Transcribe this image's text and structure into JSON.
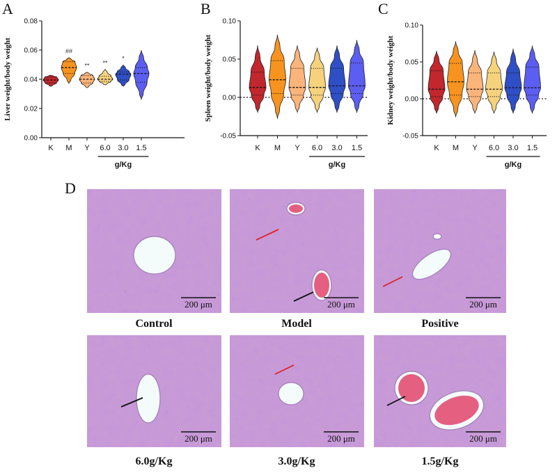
{
  "panels": {
    "A": {
      "letter": "A"
    },
    "B": {
      "letter": "B"
    },
    "C": {
      "letter": "C"
    },
    "D": {
      "letter": "D"
    }
  },
  "colors": [
    "#c1272d",
    "#f7931e",
    "#fbb47a",
    "#f6d27d",
    "#2f4fc6",
    "#5b5ef0"
  ],
  "chart_data": [
    {
      "type": "violin",
      "id": "liver",
      "title": "",
      "ylabel": "Liver weight/body weight",
      "ylim": [
        0.0,
        0.08
      ],
      "yticks": [
        0.0,
        0.02,
        0.04,
        0.06,
        0.08
      ],
      "ytick_labels": [
        "0.00",
        "0.02",
        "0.04",
        "0.06",
        "0.08"
      ],
      "categories": [
        "K",
        "M",
        "Y",
        "6.0",
        "3.0",
        "1.5"
      ],
      "group_label": "g/Kg",
      "group_categories": [
        "6.0",
        "3.0",
        "1.5"
      ],
      "significance": [
        "",
        "##",
        "**",
        "**",
        "*",
        ""
      ],
      "series": [
        {
          "name": "K",
          "min": 0.035,
          "q1": 0.0375,
          "median": 0.0395,
          "q3": 0.0415,
          "max": 0.043
        },
        {
          "name": "M",
          "min": 0.037,
          "q1": 0.044,
          "median": 0.048,
          "q3": 0.052,
          "max": 0.055
        },
        {
          "name": "Y",
          "min": 0.034,
          "q1": 0.0375,
          "median": 0.04,
          "q3": 0.0425,
          "max": 0.045
        },
        {
          "name": "6.0",
          "min": 0.036,
          "q1": 0.0385,
          "median": 0.04,
          "q3": 0.042,
          "max": 0.047
        },
        {
          "name": "3.0",
          "min": 0.035,
          "q1": 0.0395,
          "median": 0.0435,
          "q3": 0.045,
          "max": 0.05
        },
        {
          "name": "1.5",
          "min": 0.026,
          "q1": 0.038,
          "median": 0.044,
          "q3": 0.048,
          "max": 0.06
        }
      ]
    },
    {
      "type": "violin",
      "id": "spleen",
      "title": "",
      "ylabel": "Spleen weight/body weight",
      "ylim": [
        -0.05,
        0.1
      ],
      "yticks": [
        -0.05,
        0.0,
        0.05,
        0.1
      ],
      "ytick_labels": [
        "-0.05",
        "0.00",
        "0.05",
        "0.10"
      ],
      "zero_line": true,
      "categories": [
        "K",
        "M",
        "Y",
        "6.0",
        "3.0",
        "1.5"
      ],
      "group_label": "g/Kg",
      "group_categories": [
        "6.0",
        "3.0",
        "1.5"
      ],
      "series": [
        {
          "name": "K",
          "min": -0.02,
          "q1": 0.003,
          "median": 0.013,
          "q3": 0.033,
          "max": 0.068
        },
        {
          "name": "M",
          "min": -0.028,
          "q1": 0.005,
          "median": 0.023,
          "q3": 0.048,
          "max": 0.082
        },
        {
          "name": "Y",
          "min": -0.02,
          "q1": 0.003,
          "median": 0.013,
          "q3": 0.038,
          "max": 0.068
        },
        {
          "name": "6.0",
          "min": -0.02,
          "q1": 0.003,
          "median": 0.013,
          "q3": 0.038,
          "max": 0.065
        },
        {
          "name": "3.0",
          "min": -0.02,
          "q1": 0.005,
          "median": 0.015,
          "q3": 0.038,
          "max": 0.068
        },
        {
          "name": "1.5",
          "min": -0.02,
          "q1": 0.005,
          "median": 0.015,
          "q3": 0.045,
          "max": 0.075
        }
      ]
    },
    {
      "type": "violin",
      "id": "kidney",
      "title": "",
      "ylabel": "Kidney weight/body weight",
      "ylim": [
        -0.05,
        0.1
      ],
      "yticks": [
        -0.05,
        0.0,
        0.05,
        0.1
      ],
      "ytick_labels": [
        "-0.05",
        "0.00",
        "0.05",
        "0.10"
      ],
      "zero_line": true,
      "categories": [
        "K",
        "M",
        "Y",
        "6.0",
        "3.0",
        "1.5"
      ],
      "group_label": "g/Kg",
      "group_categories": [
        "6.0",
        "3.0",
        "1.5"
      ],
      "series": [
        {
          "name": "K",
          "min": -0.02,
          "q1": 0.003,
          "median": 0.013,
          "q3": 0.038,
          "max": 0.065
        },
        {
          "name": "M",
          "min": -0.025,
          "q1": 0.005,
          "median": 0.023,
          "q3": 0.048,
          "max": 0.078
        },
        {
          "name": "Y",
          "min": -0.02,
          "q1": 0.003,
          "median": 0.013,
          "q3": 0.035,
          "max": 0.066
        },
        {
          "name": "6.0",
          "min": -0.02,
          "q1": 0.003,
          "median": 0.013,
          "q3": 0.035,
          "max": 0.064
        },
        {
          "name": "3.0",
          "min": -0.02,
          "q1": 0.005,
          "median": 0.015,
          "q3": 0.035,
          "max": 0.068
        },
        {
          "name": "1.5",
          "min": -0.02,
          "q1": 0.005,
          "median": 0.015,
          "q3": 0.043,
          "max": 0.072
        }
      ]
    }
  ],
  "micrographs": [
    {
      "caption": "Control",
      "scale_bar": "200 μm"
    },
    {
      "caption": "Model",
      "scale_bar": "200 μm"
    },
    {
      "caption": "Positive",
      "scale_bar": "200 μm"
    },
    {
      "caption": "6.0g/Kg",
      "scale_bar": "200 μm"
    },
    {
      "caption": "3.0g/Kg",
      "scale_bar": "200 μm"
    },
    {
      "caption": "1.5g/Kg",
      "scale_bar": "200 μm"
    }
  ]
}
